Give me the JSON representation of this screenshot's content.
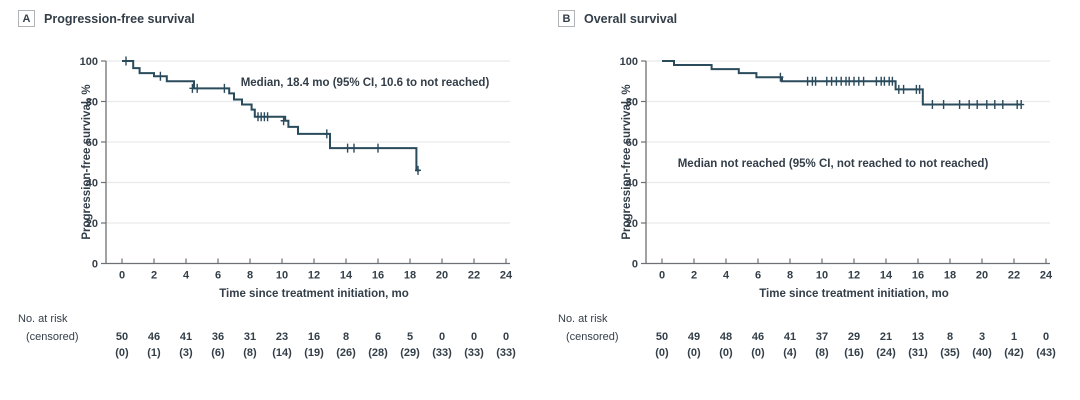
{
  "figure_title": "Kaplan-Meier survival curves",
  "colors": {
    "curve": "#2a4b5c",
    "text": "#333e48",
    "axis": "#6e7073",
    "gridline": "#e9eaeb",
    "panel_label_border": "#b0b3b5",
    "background": "#ffffff"
  },
  "chart_data": [
    {
      "type": "line",
      "subtype": "kaplan-meier-step",
      "panel_label": "A",
      "title": "Progression-free survival",
      "annotation": "Median, 18.4 mo (95% CI, 10.6 to not reached)",
      "xlabel": "Time since treatment initiation, mo",
      "ylabel": "Progression-free survival, %",
      "xlim": [
        0,
        24
      ],
      "ylim": [
        0,
        100
      ],
      "xticks": [
        0,
        2,
        4,
        6,
        8,
        10,
        12,
        14,
        16,
        18,
        20,
        22,
        24
      ],
      "yticks": [
        0,
        20,
        40,
        60,
        80,
        100
      ],
      "grid": "horizontal-light",
      "legend": "none",
      "steps": [
        [
          0,
          100
        ],
        [
          0.7,
          96.5
        ],
        [
          1.1,
          94
        ],
        [
          2,
          92.5
        ],
        [
          2.8,
          90
        ],
        [
          4.5,
          86.5
        ],
        [
          6.7,
          84
        ],
        [
          7,
          81
        ],
        [
          7.5,
          78.5
        ],
        [
          8.1,
          76
        ],
        [
          8.3,
          72.5
        ],
        [
          10.2,
          70.5
        ],
        [
          10.4,
          67.5
        ],
        [
          11,
          64
        ],
        [
          13,
          57
        ],
        [
          18.4,
          46
        ]
      ],
      "end_time": 18.6,
      "censor_marks": [
        [
          0.25,
          100
        ],
        [
          2.4,
          92.5
        ],
        [
          4.4,
          86.5
        ],
        [
          4.7,
          86.5
        ],
        [
          6.4,
          86.5
        ],
        [
          8.5,
          72.5
        ],
        [
          8.7,
          72.5
        ],
        [
          8.9,
          72.5
        ],
        [
          9.1,
          72.5
        ],
        [
          10.1,
          70.5
        ],
        [
          12.8,
          64
        ],
        [
          14.1,
          57
        ],
        [
          14.5,
          57
        ],
        [
          16,
          57
        ],
        [
          18.5,
          46
        ]
      ],
      "risk_label_line1": "No. at risk",
      "risk_label_line2": "(censored)",
      "risk_times": [
        0,
        2,
        4,
        6,
        8,
        10,
        12,
        14,
        16,
        18,
        20,
        22,
        24
      ],
      "at_risk": [
        50,
        46,
        41,
        36,
        31,
        23,
        16,
        8,
        6,
        5,
        0,
        0,
        0
      ],
      "censored": [
        0,
        1,
        3,
        6,
        8,
        14,
        19,
        26,
        28,
        29,
        33,
        33,
        33
      ]
    },
    {
      "type": "line",
      "subtype": "kaplan-meier-step",
      "panel_label": "B",
      "title": "Overall survival",
      "annotation": "Median not reached (95% CI, not reached to not reached)",
      "xlabel": "Time since treatment initiation, mo",
      "ylabel": "Progression-free survival, %",
      "xlim": [
        0,
        24
      ],
      "ylim": [
        0,
        100
      ],
      "xticks": [
        0,
        2,
        4,
        6,
        8,
        10,
        12,
        14,
        16,
        18,
        20,
        22,
        24
      ],
      "yticks": [
        0,
        20,
        40,
        60,
        80,
        100
      ],
      "grid": "horizontal-light",
      "legend": "none",
      "steps": [
        [
          0,
          100
        ],
        [
          0.75,
          98
        ],
        [
          3.1,
          96
        ],
        [
          4.8,
          94
        ],
        [
          5.9,
          92
        ],
        [
          7.5,
          90
        ],
        [
          14.6,
          86
        ],
        [
          16.3,
          78.5
        ]
      ],
      "end_time": 22.5,
      "censor_marks": [
        [
          7.4,
          92
        ],
        [
          9.1,
          90
        ],
        [
          9.4,
          90
        ],
        [
          9.6,
          90
        ],
        [
          10.3,
          90
        ],
        [
          10.6,
          90
        ],
        [
          10.9,
          90
        ],
        [
          11.2,
          90
        ],
        [
          11.5,
          90
        ],
        [
          11.7,
          90
        ],
        [
          12,
          90
        ],
        [
          12.3,
          90
        ],
        [
          12.6,
          90
        ],
        [
          13.4,
          90
        ],
        [
          13.7,
          90
        ],
        [
          13.9,
          90
        ],
        [
          14.2,
          90
        ],
        [
          14.4,
          90
        ],
        [
          14.8,
          86
        ],
        [
          15.1,
          86
        ],
        [
          15.9,
          86
        ],
        [
          16.1,
          86
        ],
        [
          16.9,
          78.5
        ],
        [
          17.6,
          78.5
        ],
        [
          18.6,
          78.5
        ],
        [
          19.2,
          78.5
        ],
        [
          19.7,
          78.5
        ],
        [
          20.3,
          78.5
        ],
        [
          20.8,
          78.5
        ],
        [
          21.3,
          78.5
        ],
        [
          22.2,
          78.5
        ],
        [
          22.45,
          78.5
        ]
      ],
      "risk_label_line1": "No. at risk",
      "risk_label_line2": "(censored)",
      "risk_times": [
        0,
        2,
        4,
        6,
        8,
        10,
        12,
        14,
        16,
        18,
        20,
        22,
        24
      ],
      "at_risk": [
        50,
        49,
        48,
        46,
        41,
        37,
        29,
        21,
        13,
        8,
        3,
        1,
        0
      ],
      "censored": [
        0,
        0,
        0,
        0,
        4,
        8,
        16,
        24,
        31,
        35,
        40,
        42,
        43
      ]
    }
  ]
}
